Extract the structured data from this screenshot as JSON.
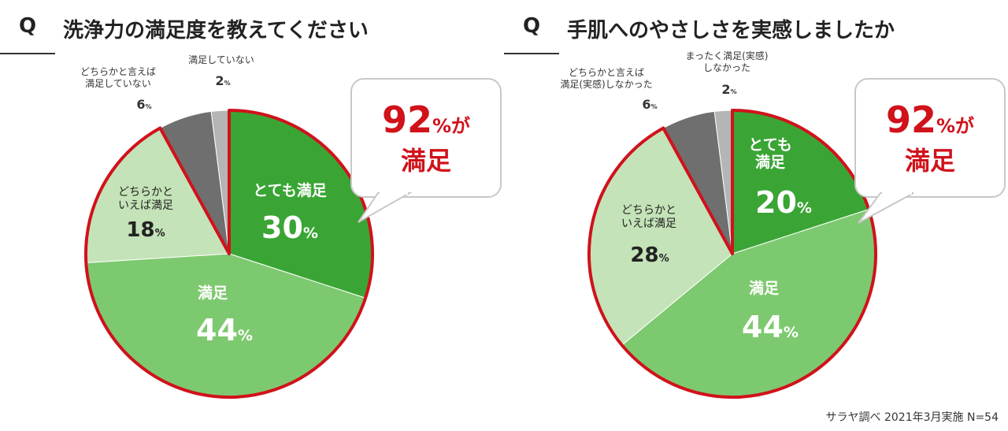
{
  "chart_data": [
    {
      "type": "pie",
      "question_mark": "Q",
      "title": "洗浄力の満足度を教えてください",
      "slices": [
        {
          "label_lines": [
            "とても満足"
          ],
          "value": 30,
          "color": "#3aa535"
        },
        {
          "label_lines": [
            "満足"
          ],
          "value": 44,
          "color": "#7dc96f"
        },
        {
          "label_lines": [
            "どちらかと",
            "いえば満足"
          ],
          "value": 18,
          "color": "#c4e3b8"
        },
        {
          "label_lines": [
            "どちらかと言えば",
            "満足していない"
          ],
          "value": 6,
          "color": "#6f6f70"
        },
        {
          "label_lines": [
            "満足していない"
          ],
          "value": 2,
          "color": "#b5b5b6"
        }
      ],
      "callout": {
        "number": "92",
        "unit": "%",
        "suffix": "が",
        "line2": "満足"
      }
    },
    {
      "type": "pie",
      "question_mark": "Q",
      "title": "手肌へのやさしさを実感しましたか",
      "slices": [
        {
          "label_lines": [
            "とても",
            "満足"
          ],
          "value": 20,
          "color": "#3aa535"
        },
        {
          "label_lines": [
            "満足"
          ],
          "value": 44,
          "color": "#7dc96f"
        },
        {
          "label_lines": [
            "どちらかと",
            "いえば満足"
          ],
          "value": 28,
          "color": "#c4e3b8"
        },
        {
          "label_lines": [
            "どちらかと言えば",
            "満足(実感)しなかった"
          ],
          "value": 6,
          "color": "#6f6f70"
        },
        {
          "label_lines": [
            "まったく満足(実感)",
            "しなかった"
          ],
          "value": 2,
          "color": "#b5b5b6"
        }
      ],
      "callout": {
        "number": "92",
        "unit": "%",
        "suffix": "が",
        "line2": "満足"
      }
    }
  ],
  "percent_sign": "%",
  "footer": "サラヤ調べ 2021年3月実施 N=54",
  "colors": {
    "outline": "#d0121b",
    "accent_red": "#d0121b",
    "text_dark": "#222222",
    "text_white": "#ffffff"
  }
}
